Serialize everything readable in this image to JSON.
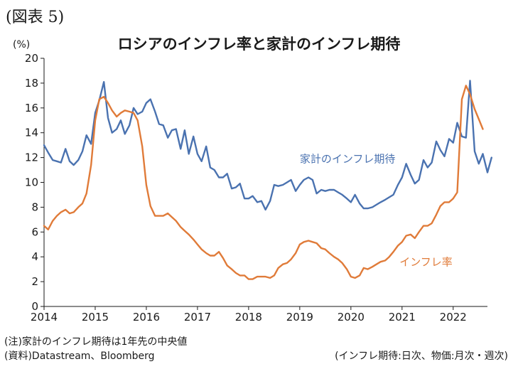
{
  "figure_label": "(図表 5)",
  "chart_data": {
    "type": "line",
    "title": "ロシアのインフレ率と家計のインフレ期待",
    "ylabel": "(%)",
    "xlabel": "",
    "ylim": [
      0,
      20
    ],
    "yticks": [
      0,
      2,
      4,
      6,
      8,
      10,
      12,
      14,
      16,
      18,
      20
    ],
    "xlim": [
      2014.0,
      2022.67
    ],
    "xticks": [
      2014,
      2015,
      2016,
      2017,
      2018,
      2019,
      2020,
      2021,
      2022
    ],
    "grid": false,
    "legend": "inline labels",
    "series": [
      {
        "name": "家計のインフレ期待",
        "color": "#4A72B0",
        "label_pos": [
          2019.0,
          11.6
        ],
        "points": [
          [
            2014.0,
            13.0
          ],
          [
            2014.08,
            12.4
          ],
          [
            2014.17,
            11.8
          ],
          [
            2014.25,
            11.7
          ],
          [
            2014.33,
            11.6
          ],
          [
            2014.42,
            12.7
          ],
          [
            2014.5,
            11.7
          ],
          [
            2014.58,
            11.4
          ],
          [
            2014.67,
            11.8
          ],
          [
            2014.75,
            12.5
          ],
          [
            2014.83,
            13.8
          ],
          [
            2014.92,
            13.1
          ],
          [
            2015.0,
            15.6
          ],
          [
            2015.08,
            16.6
          ],
          [
            2015.17,
            18.1
          ],
          [
            2015.25,
            15.2
          ],
          [
            2015.33,
            14.0
          ],
          [
            2015.42,
            14.3
          ],
          [
            2015.5,
            15.0
          ],
          [
            2015.58,
            13.9
          ],
          [
            2015.67,
            14.6
          ],
          [
            2015.75,
            16.0
          ],
          [
            2015.83,
            15.5
          ],
          [
            2015.92,
            15.7
          ],
          [
            2016.0,
            16.4
          ],
          [
            2016.08,
            16.7
          ],
          [
            2016.17,
            15.7
          ],
          [
            2016.25,
            14.7
          ],
          [
            2016.33,
            14.6
          ],
          [
            2016.42,
            13.6
          ],
          [
            2016.5,
            14.2
          ],
          [
            2016.58,
            14.3
          ],
          [
            2016.67,
            12.7
          ],
          [
            2016.75,
            14.2
          ],
          [
            2016.83,
            12.3
          ],
          [
            2016.92,
            13.7
          ],
          [
            2017.0,
            12.3
          ],
          [
            2017.08,
            11.7
          ],
          [
            2017.17,
            12.9
          ],
          [
            2017.25,
            11.2
          ],
          [
            2017.33,
            11.0
          ],
          [
            2017.42,
            10.4
          ],
          [
            2017.5,
            10.4
          ],
          [
            2017.58,
            10.7
          ],
          [
            2017.67,
            9.5
          ],
          [
            2017.75,
            9.6
          ],
          [
            2017.83,
            9.9
          ],
          [
            2017.92,
            8.7
          ],
          [
            2018.0,
            8.7
          ],
          [
            2018.08,
            8.9
          ],
          [
            2018.17,
            8.4
          ],
          [
            2018.25,
            8.5
          ],
          [
            2018.33,
            7.8
          ],
          [
            2018.42,
            8.5
          ],
          [
            2018.5,
            9.8
          ],
          [
            2018.58,
            9.7
          ],
          [
            2018.67,
            9.8
          ],
          [
            2018.75,
            10.0
          ],
          [
            2018.83,
            10.2
          ],
          [
            2018.92,
            9.3
          ],
          [
            2019.0,
            9.8
          ],
          [
            2019.08,
            10.2
          ],
          [
            2019.17,
            10.4
          ],
          [
            2019.25,
            10.2
          ],
          [
            2019.33,
            9.1
          ],
          [
            2019.42,
            9.4
          ],
          [
            2019.5,
            9.3
          ],
          [
            2019.58,
            9.4
          ],
          [
            2019.67,
            9.4
          ],
          [
            2019.75,
            9.2
          ],
          [
            2019.83,
            9.0
          ],
          [
            2019.92,
            8.7
          ],
          [
            2020.0,
            8.4
          ],
          [
            2020.08,
            9.0
          ],
          [
            2020.17,
            8.3
          ],
          [
            2020.25,
            7.9
          ],
          [
            2020.33,
            7.9
          ],
          [
            2020.42,
            8.0
          ],
          [
            2020.5,
            8.2
          ],
          [
            2020.58,
            8.4
          ],
          [
            2020.67,
            8.6
          ],
          [
            2020.75,
            8.8
          ],
          [
            2020.83,
            9.0
          ],
          [
            2020.92,
            9.8
          ],
          [
            2021.0,
            10.4
          ],
          [
            2021.08,
            11.5
          ],
          [
            2021.17,
            10.6
          ],
          [
            2021.25,
            9.9
          ],
          [
            2021.33,
            10.2
          ],
          [
            2021.42,
            11.8
          ],
          [
            2021.5,
            11.2
          ],
          [
            2021.58,
            11.6
          ],
          [
            2021.67,
            13.3
          ],
          [
            2021.75,
            12.6
          ],
          [
            2021.83,
            12.1
          ],
          [
            2021.92,
            13.5
          ],
          [
            2022.0,
            13.2
          ],
          [
            2022.08,
            14.8
          ],
          [
            2022.17,
            13.7
          ],
          [
            2022.25,
            13.6
          ],
          [
            2022.33,
            18.2
          ],
          [
            2022.42,
            12.5
          ],
          [
            2022.5,
            11.5
          ],
          [
            2022.58,
            12.3
          ],
          [
            2022.67,
            10.8
          ],
          [
            2022.75,
            12.0
          ]
        ]
      },
      {
        "name": "インフレ率",
        "color": "#E07B39",
        "label_pos": [
          2020.95,
          3.3
        ],
        "points": [
          [
            2014.0,
            6.5
          ],
          [
            2014.08,
            6.2
          ],
          [
            2014.17,
            6.9
          ],
          [
            2014.25,
            7.3
          ],
          [
            2014.33,
            7.6
          ],
          [
            2014.42,
            7.8
          ],
          [
            2014.5,
            7.5
          ],
          [
            2014.58,
            7.6
          ],
          [
            2014.67,
            8.0
          ],
          [
            2014.75,
            8.3
          ],
          [
            2014.83,
            9.1
          ],
          [
            2014.92,
            11.4
          ],
          [
            2015.0,
            15.0
          ],
          [
            2015.08,
            16.7
          ],
          [
            2015.17,
            16.9
          ],
          [
            2015.25,
            16.4
          ],
          [
            2015.33,
            15.8
          ],
          [
            2015.42,
            15.3
          ],
          [
            2015.5,
            15.6
          ],
          [
            2015.58,
            15.8
          ],
          [
            2015.67,
            15.7
          ],
          [
            2015.75,
            15.6
          ],
          [
            2015.83,
            15.0
          ],
          [
            2015.92,
            12.9
          ],
          [
            2016.0,
            9.8
          ],
          [
            2016.08,
            8.1
          ],
          [
            2016.17,
            7.3
          ],
          [
            2016.25,
            7.3
          ],
          [
            2016.33,
            7.3
          ],
          [
            2016.42,
            7.5
          ],
          [
            2016.5,
            7.2
          ],
          [
            2016.58,
            6.9
          ],
          [
            2016.67,
            6.4
          ],
          [
            2016.75,
            6.1
          ],
          [
            2016.83,
            5.8
          ],
          [
            2016.92,
            5.4
          ],
          [
            2017.0,
            5.0
          ],
          [
            2017.08,
            4.6
          ],
          [
            2017.17,
            4.3
          ],
          [
            2017.25,
            4.1
          ],
          [
            2017.33,
            4.1
          ],
          [
            2017.42,
            4.4
          ],
          [
            2017.5,
            3.9
          ],
          [
            2017.58,
            3.3
          ],
          [
            2017.67,
            3.0
          ],
          [
            2017.75,
            2.7
          ],
          [
            2017.83,
            2.5
          ],
          [
            2017.92,
            2.5
          ],
          [
            2018.0,
            2.2
          ],
          [
            2018.08,
            2.2
          ],
          [
            2018.17,
            2.4
          ],
          [
            2018.25,
            2.4
          ],
          [
            2018.33,
            2.4
          ],
          [
            2018.42,
            2.3
          ],
          [
            2018.5,
            2.5
          ],
          [
            2018.58,
            3.1
          ],
          [
            2018.67,
            3.4
          ],
          [
            2018.75,
            3.5
          ],
          [
            2018.83,
            3.8
          ],
          [
            2018.92,
            4.3
          ],
          [
            2019.0,
            5.0
          ],
          [
            2019.08,
            5.2
          ],
          [
            2019.17,
            5.3
          ],
          [
            2019.25,
            5.2
          ],
          [
            2019.33,
            5.1
          ],
          [
            2019.42,
            4.7
          ],
          [
            2019.5,
            4.6
          ],
          [
            2019.58,
            4.3
          ],
          [
            2019.67,
            4.0
          ],
          [
            2019.75,
            3.8
          ],
          [
            2019.83,
            3.5
          ],
          [
            2019.92,
            3.0
          ],
          [
            2020.0,
            2.4
          ],
          [
            2020.08,
            2.3
          ],
          [
            2020.17,
            2.5
          ],
          [
            2020.25,
            3.1
          ],
          [
            2020.33,
            3.0
          ],
          [
            2020.42,
            3.2
          ],
          [
            2020.5,
            3.4
          ],
          [
            2020.58,
            3.6
          ],
          [
            2020.67,
            3.7
          ],
          [
            2020.75,
            4.0
          ],
          [
            2020.83,
            4.4
          ],
          [
            2020.92,
            4.9
          ],
          [
            2021.0,
            5.2
          ],
          [
            2021.08,
            5.7
          ],
          [
            2021.17,
            5.8
          ],
          [
            2021.25,
            5.5
          ],
          [
            2021.33,
            6.0
          ],
          [
            2021.42,
            6.5
          ],
          [
            2021.5,
            6.5
          ],
          [
            2021.58,
            6.7
          ],
          [
            2021.67,
            7.4
          ],
          [
            2021.75,
            8.1
          ],
          [
            2021.83,
            8.4
          ],
          [
            2021.92,
            8.4
          ],
          [
            2022.0,
            8.7
          ],
          [
            2022.08,
            9.2
          ],
          [
            2022.17,
            16.7
          ],
          [
            2022.25,
            17.8
          ],
          [
            2022.33,
            17.1
          ],
          [
            2022.42,
            15.9
          ],
          [
            2022.5,
            15.1
          ],
          [
            2022.58,
            14.3
          ]
        ]
      }
    ]
  },
  "notes": {
    "line1": "(注)家計のインフレ期待は1年先の中央値",
    "line2": "(資料)Datastream、Bloomberg",
    "right": "(インフレ期待:日次、物価:月次・週次)"
  }
}
